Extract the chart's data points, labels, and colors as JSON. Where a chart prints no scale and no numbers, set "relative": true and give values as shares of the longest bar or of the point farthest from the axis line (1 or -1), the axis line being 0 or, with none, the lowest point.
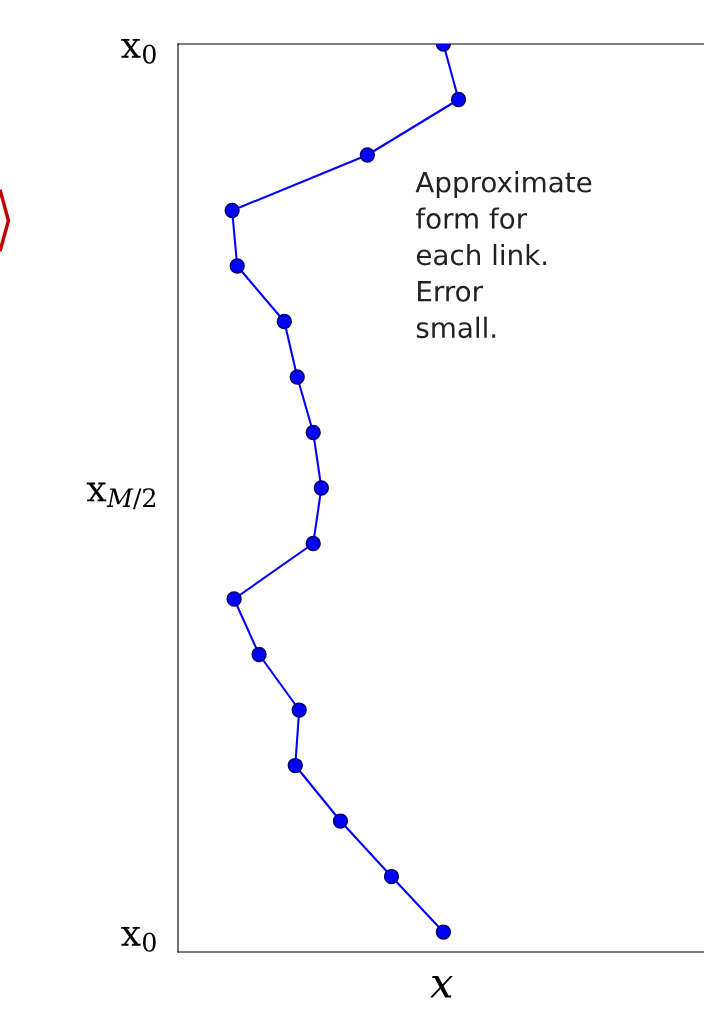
{
  "chart_data": {
    "type": "line",
    "xlabel": "x",
    "orientation": "horizontal",
    "relative": true,
    "categories": [
      "x$_{0}$",
      null,
      null,
      null,
      null,
      null,
      null,
      null,
      "x$_{M/2}$",
      null,
      null,
      null,
      null,
      null,
      null,
      null,
      "x$_{0}$"
    ],
    "values": [
      0.946,
      1,
      0.675,
      0.193,
      0.211,
      0.379,
      0.425,
      0.482,
      0.511,
      0.482,
      0.2,
      0.289,
      0.432,
      0.418,
      0.579,
      0.761,
      0.946
    ],
    "color": "#0000ff",
    "marker": "circle",
    "line_style": "solid",
    "grid": false,
    "legend": false,
    "annotations": [
      "Approximate\nform for\neach link.\nError\nsmall."
    ]
  }
}
